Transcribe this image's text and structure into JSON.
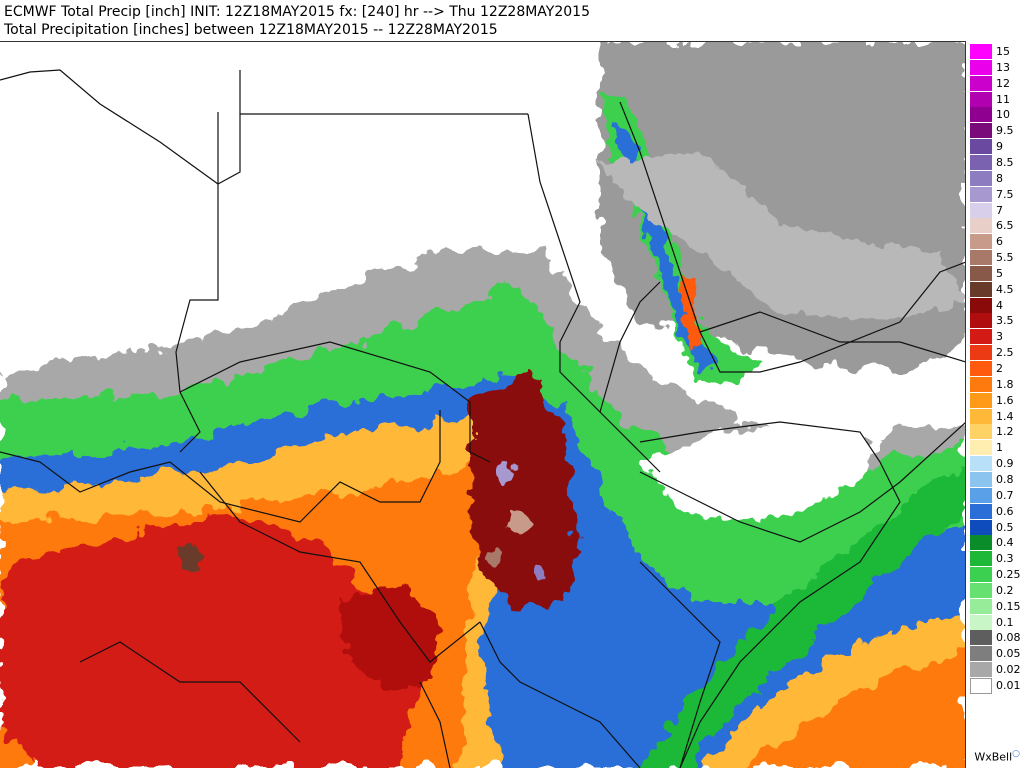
{
  "header": {
    "line1": "ECMWF Total Precip [inch] INIT: 12Z18MAY2015 fx: [240] hr --> Thu 12Z28MAY2015",
    "line2": "Total Precipitation [inches] between 12Z18MAY2015 -- 12Z28MAY2015"
  },
  "legend": {
    "items": [
      {
        "label": "15",
        "color": "#ff00ff"
      },
      {
        "label": "13",
        "color": "#ea00ea"
      },
      {
        "label": "12",
        "color": "#cc00cc"
      },
      {
        "label": "11",
        "color": "#b000b0"
      },
      {
        "label": "10",
        "color": "#900090"
      },
      {
        "label": "9.5",
        "color": "#7a0a7a"
      },
      {
        "label": "9",
        "color": "#6a4aa0"
      },
      {
        "label": "8.5",
        "color": "#7a62b0"
      },
      {
        "label": "8",
        "color": "#8e7cc0"
      },
      {
        "label": "7.5",
        "color": "#a898d0"
      },
      {
        "label": "7",
        "color": "#d8d0ea"
      },
      {
        "label": "6.5",
        "color": "#e8d0c8"
      },
      {
        "label": "6",
        "color": "#c89a8a"
      },
      {
        "label": "5.5",
        "color": "#a87868"
      },
      {
        "label": "5",
        "color": "#885848"
      },
      {
        "label": "4.5",
        "color": "#683a2a"
      },
      {
        "label": "4",
        "color": "#8a0a0a"
      },
      {
        "label": "3.5",
        "color": "#b00e0e"
      },
      {
        "label": "3",
        "color": "#d41a14"
      },
      {
        "label": "2.5",
        "color": "#ec3a14"
      },
      {
        "label": "2",
        "color": "#ff5a0e"
      },
      {
        "label": "1.8",
        "color": "#ff7a0e"
      },
      {
        "label": "1.6",
        "color": "#ff9a18"
      },
      {
        "label": "1.4",
        "color": "#ffb838"
      },
      {
        "label": "1.2",
        "color": "#ffd266"
      },
      {
        "label": "1",
        "color": "#ffeeb0"
      },
      {
        "label": "0.9",
        "color": "#b8e0f8"
      },
      {
        "label": "0.8",
        "color": "#8cc4f0"
      },
      {
        "label": "0.7",
        "color": "#5aa0e8"
      },
      {
        "label": "0.6",
        "color": "#2c6ed8"
      },
      {
        "label": "0.5",
        "color": "#0e4cbe"
      },
      {
        "label": "0.4",
        "color": "#0a8c2a"
      },
      {
        "label": "0.3",
        "color": "#1eb838"
      },
      {
        "label": "0.25",
        "color": "#3cd050"
      },
      {
        "label": "0.2",
        "color": "#66e070"
      },
      {
        "label": "0.15",
        "color": "#96ec98"
      },
      {
        "label": "0.1",
        "color": "#c8f6c6"
      },
      {
        "label": "0.08",
        "color": "#5e5e5e"
      },
      {
        "label": "0.05",
        "color": "#7e7e7e"
      },
      {
        "label": "0.02",
        "color": "#a8a8a8"
      },
      {
        "label": "0.01",
        "color": "#ffffff"
      }
    ]
  },
  "brand": {
    "text": "WxBell"
  }
}
